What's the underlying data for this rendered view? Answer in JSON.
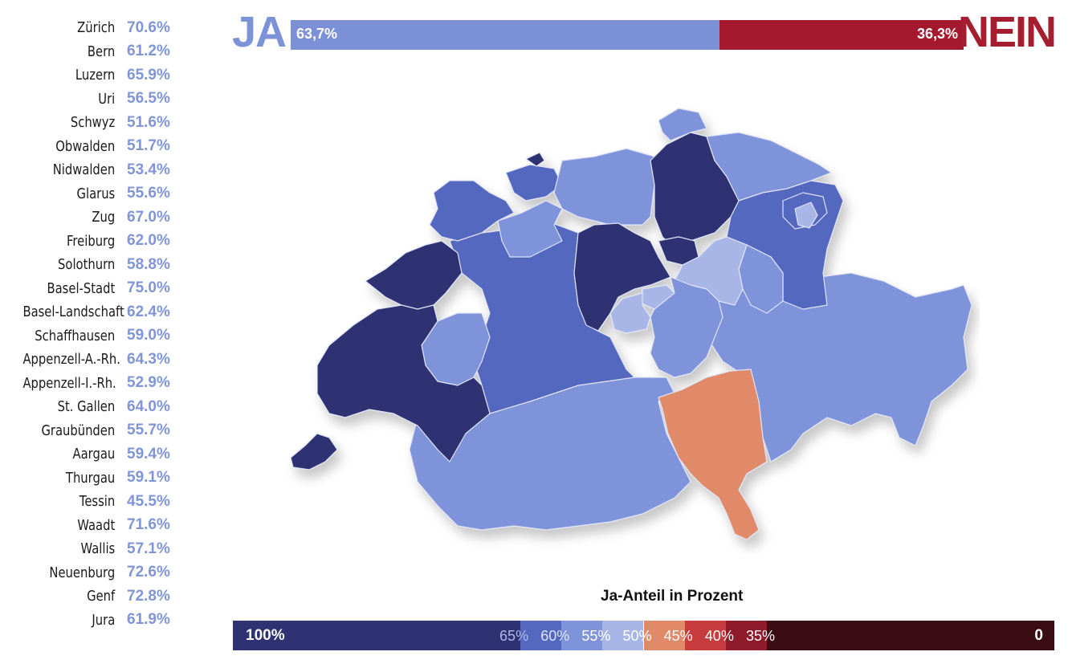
{
  "header": {
    "ja_label": "JA",
    "nein_label": "NEIN",
    "ja_value": "63,7%",
    "nein_value": "36,3%",
    "ja_share": 0.637,
    "ja_color": "#7c90d8",
    "nein_color": "#a4192e"
  },
  "cantons": [
    {
      "name": "Zürich",
      "pct": "70.6%"
    },
    {
      "name": "Bern",
      "pct": "61.2%"
    },
    {
      "name": "Luzern",
      "pct": "65.9%"
    },
    {
      "name": "Uri",
      "pct": "56.5%"
    },
    {
      "name": "Schwyz",
      "pct": "51.6%"
    },
    {
      "name": "Obwalden",
      "pct": "51.7%"
    },
    {
      "name": "Nidwalden",
      "pct": "53.4%"
    },
    {
      "name": "Glarus",
      "pct": "55.6%"
    },
    {
      "name": "Zug",
      "pct": "67.0%"
    },
    {
      "name": "Freiburg",
      "pct": "62.0%"
    },
    {
      "name": "Solothurn",
      "pct": "58.8%"
    },
    {
      "name": "Basel-Stadt",
      "pct": "75.0%"
    },
    {
      "name": "Basel-Landschaft",
      "pct": "62.4%"
    },
    {
      "name": "Schaffhausen",
      "pct": "59.0%"
    },
    {
      "name": "Appenzell-A.-Rh.",
      "pct": "64.3%"
    },
    {
      "name": "Appenzell-I.-Rh.",
      "pct": "52.9%"
    },
    {
      "name": "St. Gallen",
      "pct": "64.0%"
    },
    {
      "name": "Graubünden",
      "pct": "55.7%"
    },
    {
      "name": "Aargau",
      "pct": "59.4%"
    },
    {
      "name": "Thurgau",
      "pct": "59.1%"
    },
    {
      "name": "Tessin",
      "pct": "45.5%"
    },
    {
      "name": "Waadt",
      "pct": "71.6%"
    },
    {
      "name": "Wallis",
      "pct": "57.1%"
    },
    {
      "name": "Neuenburg",
      "pct": "72.6%"
    },
    {
      "name": "Genf",
      "pct": "72.8%"
    },
    {
      "name": "Jura",
      "pct": "61.9%"
    }
  ],
  "legend": {
    "title": "Ja-Anteil in Prozent",
    "end_high": "100%",
    "end_low": "0",
    "ticks": [
      "65%",
      "60%",
      "55%",
      "50%",
      "45%",
      "40%",
      "35%"
    ],
    "bands": [
      {
        "from": 100,
        "to": 65,
        "color": "#2e3272"
      },
      {
        "from": 65,
        "to": 60,
        "color": "#5568bf"
      },
      {
        "from": 60,
        "to": 55,
        "color": "#7f93da"
      },
      {
        "from": 55,
        "to": 50,
        "color": "#a7b6e6"
      },
      {
        "from": 50,
        "to": 45,
        "color": "#e08a6a"
      },
      {
        "from": 45,
        "to": 40,
        "color": "#c63b3b"
      },
      {
        "from": 40,
        "to": 35,
        "color": "#8e1a2a"
      },
      {
        "from": 35,
        "to": 0,
        "color": "#3a0d14"
      }
    ]
  }
}
